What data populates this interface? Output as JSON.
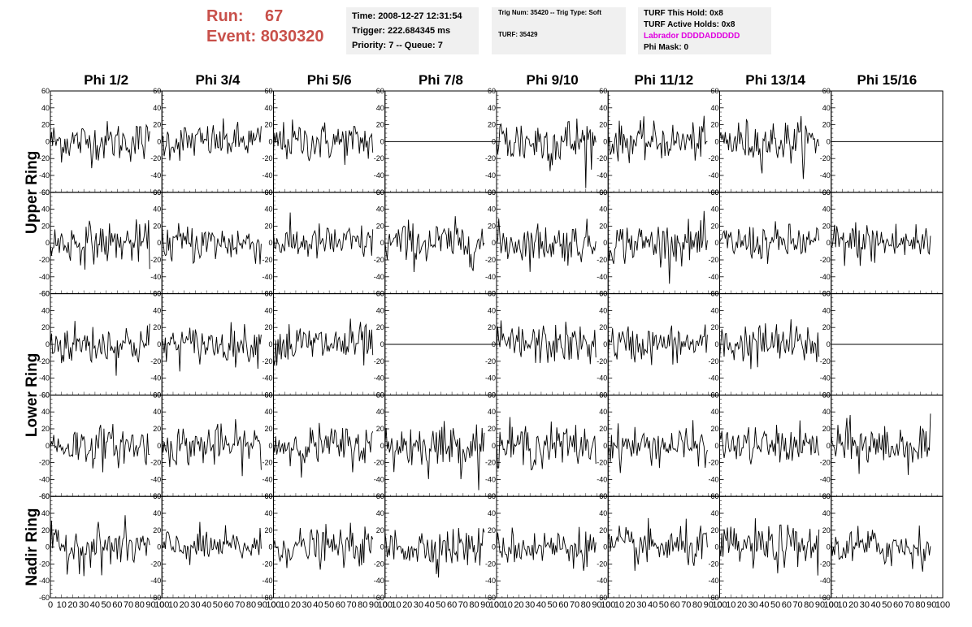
{
  "header": {
    "run_label": "Run:",
    "run_value": "67",
    "event_label": "Event:",
    "event_value": "8030320",
    "time_line": "Time: 2008-12-27 12:31:54",
    "trigger_line": "Trigger: 222.684345 ms",
    "priority_line": "Priority: 7 -- Queue: 7",
    "trig_line": "Trig Num: 35420 -- Trig Type: Soft",
    "turf_line": "TURF: 35429",
    "turf_hold": "TURF This Hold: 0x8",
    "turf_active": "TURF Active Holds: 0x8",
    "labrador": "Labrador DDDDADDDDD",
    "phi_mask": "Phi Mask: 0",
    "colors": {
      "run": "#c8504a",
      "labrador": "#e000e0",
      "info_bg": "#f0f0f0"
    }
  },
  "chart_data": {
    "type": "line",
    "columns": [
      "Phi 1/2",
      "Phi 3/4",
      "Phi 5/6",
      "Phi 7/8",
      "Phi 9/10",
      "Phi 11/12",
      "Phi 13/14",
      "Phi 15/16"
    ],
    "ring_labels": [
      "Upper Ring",
      "Lower Ring",
      "Nadir Ring"
    ],
    "ylim": [
      -60,
      60
    ],
    "yticks": [
      -60,
      -40,
      -20,
      0,
      20,
      40,
      60
    ],
    "xlim": [
      0,
      100
    ],
    "xticks": [
      0,
      10,
      20,
      30,
      40,
      50,
      60,
      70,
      80,
      90,
      100
    ],
    "samples_per_trace": 90,
    "flat_panels": [
      [
        0,
        3
      ],
      [
        0,
        7
      ],
      [
        2,
        3
      ],
      [
        2,
        7
      ]
    ],
    "panel_amplitude_rms": [
      [
        12,
        11,
        12,
        0,
        16,
        11,
        13,
        0
      ],
      [
        12,
        12,
        11,
        13,
        12,
        12,
        11,
        13
      ],
      [
        13,
        11,
        13,
        0,
        12,
        11,
        13,
        0
      ],
      [
        12,
        12,
        12,
        14,
        13,
        11,
        11,
        14
      ],
      [
        13,
        10,
        11,
        12,
        11,
        12,
        13,
        12
      ]
    ]
  }
}
